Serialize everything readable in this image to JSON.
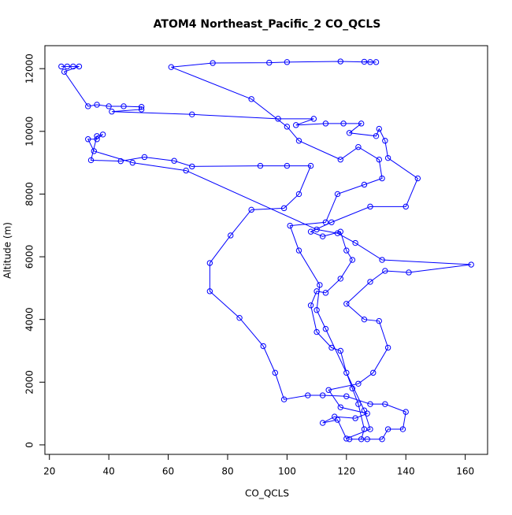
{
  "chart_data": {
    "type": "line",
    "title": "ATOM4 Northeast_Pacific_2 CO_QCLS",
    "x_label": "CO_QCLS",
    "y_label": "Altitude (m)",
    "color": "#0000ff",
    "x": [
      24,
      26,
      28,
      30,
      25,
      33,
      36,
      40,
      45,
      51,
      51,
      41,
      68,
      97,
      109,
      103,
      113,
      119,
      125,
      121,
      130,
      131,
      133,
      134,
      144,
      140,
      128,
      115,
      108,
      112,
      118,
      120,
      122,
      118,
      113,
      110,
      108,
      110,
      115,
      118,
      120,
      122,
      124,
      126,
      125,
      121,
      127,
      132,
      134,
      139,
      140,
      133,
      128,
      120,
      112,
      107,
      99,
      96,
      92,
      84,
      74,
      74,
      81,
      88,
      99,
      104,
      108,
      100,
      91,
      68,
      62,
      52,
      44,
      34,
      36,
      38,
      36,
      33,
      35,
      48,
      66,
      110,
      117,
      123,
      132,
      162,
      141,
      133,
      128,
      120,
      126,
      131,
      134,
      129,
      124,
      114,
      118,
      127,
      123,
      116,
      112,
      117,
      120,
      128,
      126,
      113,
      110,
      111,
      104,
      101,
      113,
      117,
      126,
      132,
      131,
      124,
      118,
      104,
      100,
      88,
      61,
      75,
      94,
      100,
      118,
      128,
      130,
      126
    ],
    "values": [
      12070,
      12070,
      12070,
      12070,
      11900,
      10800,
      10850,
      10800,
      10800,
      10780,
      10700,
      10630,
      10540,
      10400,
      10400,
      10200,
      10250,
      10250,
      10250,
      9950,
      9850,
      10080,
      9700,
      9150,
      8500,
      7600,
      7600,
      7100,
      6800,
      6650,
      6800,
      6200,
      5900,
      5300,
      4850,
      4900,
      4450,
      3600,
      3100,
      3000,
      2300,
      1800,
      1300,
      500,
      180,
      180,
      180,
      180,
      500,
      500,
      1050,
      1300,
      1300,
      1550,
      1580,
      1580,
      1450,
      2300,
      3150,
      4050,
      4900,
      5800,
      6680,
      7500,
      7550,
      8000,
      8900,
      8900,
      8900,
      8880,
      9060,
      9180,
      9050,
      9080,
      9850,
      9900,
      9750,
      9750,
      9370,
      9000,
      8750,
      6870,
      6750,
      6440,
      5900,
      5750,
      5500,
      5550,
      5200,
      4500,
      4000,
      3950,
      3100,
      2300,
      1950,
      1750,
      1200,
      1000,
      850,
      900,
      700,
      800,
      200,
      500,
      1100,
      3700,
      4300,
      5100,
      6200,
      6990,
      7100,
      8000,
      8300,
      8500,
      9100,
      9500,
      9100,
      9700,
      10150,
      11030,
      12050,
      12180,
      12190,
      12210,
      12230,
      12210,
      12210,
      12220
    ],
    "xlim": [
      18.48,
      167.52
    ],
    "ylim": [
      -303,
      12733
    ],
    "xticks": [
      20,
      40,
      60,
      80,
      100,
      120,
      140,
      160
    ],
    "yticks": [
      0,
      2000,
      4000,
      6000,
      8000,
      10000,
      12000
    ]
  }
}
